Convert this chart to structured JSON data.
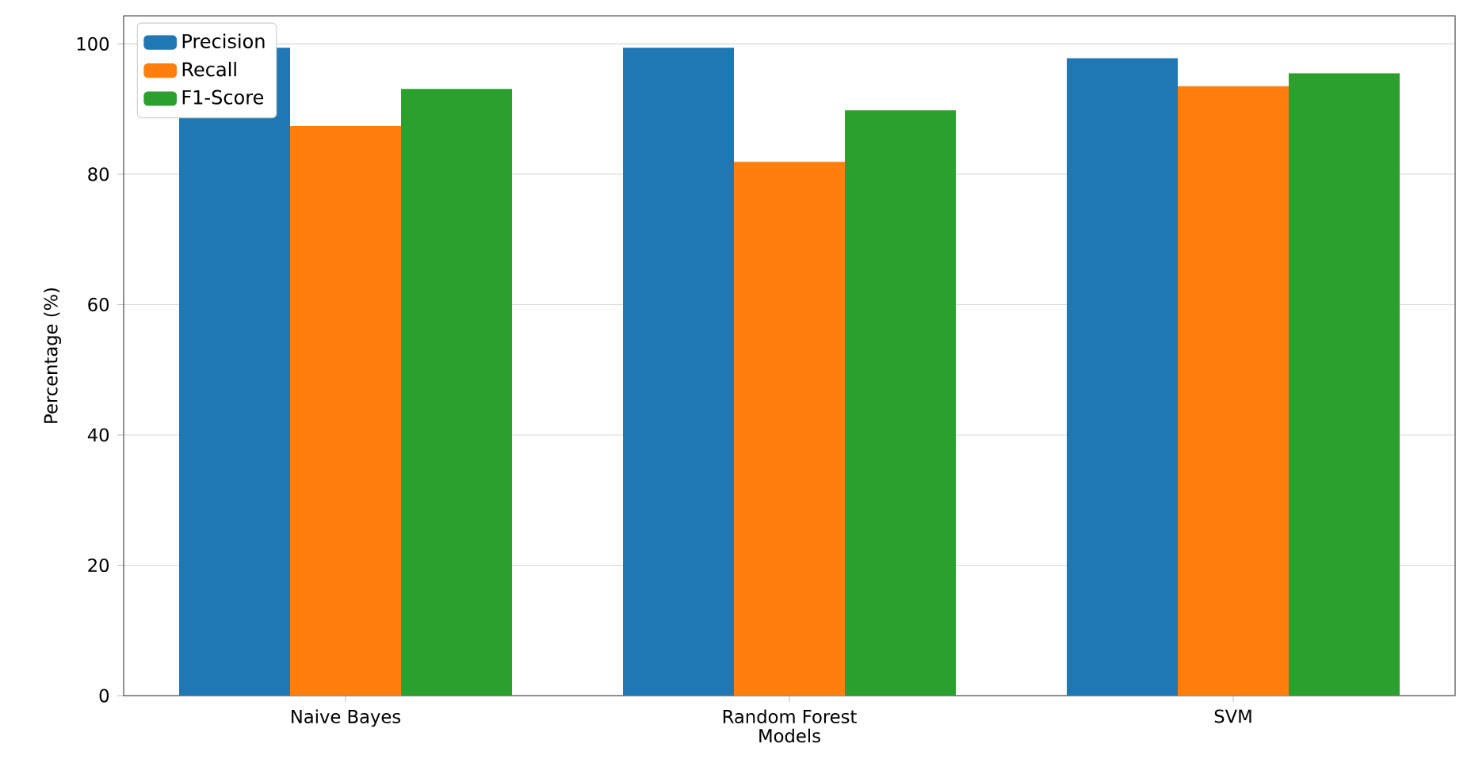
{
  "chart_data": {
    "type": "bar",
    "xlabel": "Models",
    "ylabel": "Percentage (%)",
    "categories": [
      "Naive Bayes",
      "Random Forest",
      "SVM"
    ],
    "series": [
      {
        "name": "Precision",
        "color": "#1f77b4",
        "values": [
          99.4,
          99.4,
          97.8
        ]
      },
      {
        "name": "Recall",
        "color": "#ff7f0e",
        "values": [
          87.4,
          81.9,
          93.5
        ]
      },
      {
        "name": "F1-Score",
        "color": "#2ca02c",
        "values": [
          93.1,
          89.8,
          95.5
        ]
      }
    ],
    "ylim": [
      0,
      104.3
    ],
    "yticks": [
      0,
      20,
      40,
      60,
      80,
      100
    ],
    "grid": "y",
    "legend": "top left"
  }
}
